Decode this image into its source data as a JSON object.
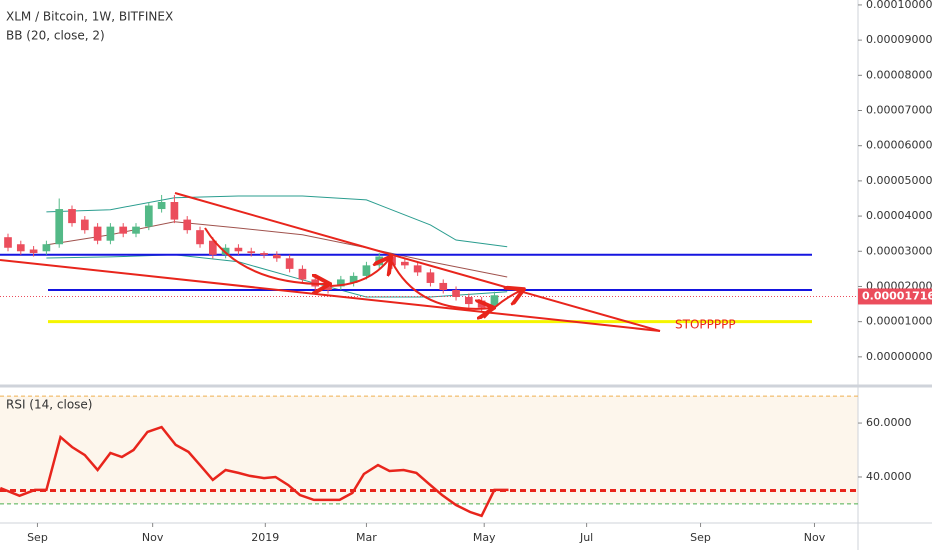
{
  "chart_data": [
    {
      "type": "candlestick",
      "title": "XLM / Bitcoin, 1W, BITFINEX",
      "subtitle": "BB (20, close, 2)",
      "x": [
        0,
        1,
        2,
        3,
        4,
        5,
        6,
        7,
        8,
        9,
        10,
        11,
        12,
        13,
        14,
        15,
        16,
        17,
        18,
        19,
        20,
        21,
        22,
        23,
        24,
        25,
        26,
        27,
        28,
        29,
        30,
        31,
        32,
        33,
        34,
        35,
        36,
        37,
        38
      ],
      "open": [
        3.4e-05,
        3.2e-05,
        3.05e-05,
        3e-05,
        3.2e-05,
        4.2e-05,
        3.9e-05,
        3.7e-05,
        3.3e-05,
        3.7e-05,
        3.5e-05,
        3.7e-05,
        4.2e-05,
        4.4e-05,
        3.9e-05,
        3.6e-05,
        3.3e-05,
        2.9e-05,
        3.1e-05,
        3e-05,
        2.95e-05,
        2.9e-05,
        2.8e-05,
        2.5e-05,
        2.2e-05,
        2e-05,
        2e-05,
        2.1e-05,
        2.3e-05,
        2.6e-05,
        2.85e-05,
        2.7e-05,
        2.6e-05,
        2.4e-05,
        2.1e-05,
        1.9e-05,
        1.7e-05,
        1.6e-05,
        1.45e-05
      ],
      "high": [
        3.5e-05,
        3.3e-05,
        3.15e-05,
        3.3e-05,
        4.5e-05,
        4.3e-05,
        4e-05,
        3.8e-05,
        3.8e-05,
        3.8e-05,
        3.8e-05,
        4.4e-05,
        4.6e-05,
        4.6e-05,
        4e-05,
        3.7e-05,
        3.4e-05,
        3.2e-05,
        3.2e-05,
        3.1e-05,
        3e-05,
        3e-05,
        2.9e-05,
        2.6e-05,
        2.3e-05,
        2.1e-05,
        2.3e-05,
        2.4e-05,
        2.7e-05,
        2.95e-05,
        2.9e-05,
        2.8e-05,
        2.7e-05,
        2.5e-05,
        2.2e-05,
        2e-05,
        1.8e-05,
        1.7e-05,
        1.85e-05
      ],
      "low": [
        3e-05,
        2.9e-05,
        2.85e-05,
        2.9e-05,
        3.1e-05,
        3.7e-05,
        3.5e-05,
        3.2e-05,
        3.2e-05,
        3.4e-05,
        3.4e-05,
        3.6e-05,
        4.1e-05,
        3.8e-05,
        3.5e-05,
        3.1e-05,
        2.8e-05,
        2.8e-05,
        2.9e-05,
        2.85e-05,
        2.8e-05,
        2.7e-05,
        2.4e-05,
        2.1e-05,
        1.9e-05,
        1.8e-05,
        1.9e-05,
        2e-05,
        2.2e-05,
        2.5e-05,
        2.5e-05,
        2.5e-05,
        2.3e-05,
        2e-05,
        1.8e-05,
        1.6e-05,
        1.4e-05,
        1.3e-05,
        1.35e-05
      ],
      "close": [
        3.1e-05,
        3e-05,
        2.95e-05,
        3.2e-05,
        4.2e-05,
        3.8e-05,
        3.6e-05,
        3.3e-05,
        3.7e-05,
        3.5e-05,
        3.7e-05,
        4.3e-05,
        4.4e-05,
        3.9e-05,
        3.6e-05,
        3.2e-05,
        2.9e-05,
        3.1e-05,
        3e-05,
        2.95e-05,
        2.9e-05,
        2.8e-05,
        2.5e-05,
        2.2e-05,
        2e-05,
        1.9e-05,
        2.2e-05,
        2.3e-05,
        2.6e-05,
        2.85e-05,
        2.6e-05,
        2.6e-05,
        2.4e-05,
        2.1e-05,
        1.9e-05,
        1.7e-05,
        1.5e-05,
        1.4e-05,
        1.75e-05
      ],
      "up_color": "#53b987",
      "down_color": "#eb4d5c",
      "overlays": [
        {
          "color": "#2a9d8f",
          "x": [
            3,
            8,
            13,
            18,
            23,
            28,
            33,
            35,
            39
          ],
          "values": [
            4.12e-05,
            4.18e-05,
            4.52e-05,
            4.57e-05,
            4.57e-05,
            4.46e-05,
            3.75e-05,
            3.32e-05,
            3.13e-05
          ]
        },
        {
          "color": "#a0524d",
          "x": [
            3,
            8,
            13,
            18,
            23,
            28,
            33,
            39
          ],
          "values": [
            3.18e-05,
            3.47e-05,
            3.84e-05,
            3.66e-05,
            3.47e-05,
            3.1e-05,
            2.7e-05,
            2.27e-05
          ]
        },
        {
          "color": "#2a9d8f",
          "x": [
            3,
            8,
            13,
            18,
            23,
            28,
            33,
            39
          ],
          "values": [
            2.81e-05,
            2.84e-05,
            2.9e-05,
            2.7e-05,
            2.19e-05,
            1.7e-05,
            1.7e-05,
            1.85e-05
          ]
        }
      ],
      "levels": [
        {
          "value": 2.9e-05,
          "color": "#1515e0"
        },
        {
          "value": 1.9e-05,
          "color": "#1515e0"
        },
        {
          "value": 1e-05,
          "color": "#f5f500"
        }
      ],
      "last_price": 1.716e-05,
      "annotation": "STOPPPPP",
      "xlim": [
        -0.625,
        66.4
      ],
      "ylim": [
        -8e-06,
        0.0001014
      ],
      "yticks": [
        {
          "value": 0,
          "label": "0.00000000"
        },
        {
          "value": 1e-05,
          "label": "0.00001000"
        },
        {
          "value": 2e-05,
          "label": "0.00002000"
        },
        {
          "value": 3e-05,
          "label": "0.00003000"
        },
        {
          "value": 4e-05,
          "label": "0.00004000"
        },
        {
          "value": 5e-05,
          "label": "0.00005000"
        },
        {
          "value": 6e-05,
          "label": "0.00006000"
        },
        {
          "value": 7e-05,
          "label": "0.00007000"
        },
        {
          "value": 8e-05,
          "label": "0.00008000"
        },
        {
          "value": 9e-05,
          "label": "0.00009000"
        },
        {
          "value": 0.0001,
          "label": "0.00010000"
        }
      ],
      "xticks": [
        {
          "value": 2.3,
          "label": "Sep"
        },
        {
          "value": 11.3,
          "label": "Nov"
        },
        {
          "value": 20.1,
          "label": "2019"
        },
        {
          "value": 28,
          "label": "Mar"
        },
        {
          "value": 37.2,
          "label": "May"
        },
        {
          "value": 45.2,
          "label": "Jul"
        },
        {
          "value": 54.1,
          "label": "Sep"
        },
        {
          "value": 63,
          "label": "Nov"
        }
      ]
    },
    {
      "type": "line",
      "title": "RSI (14, close)",
      "x": [
        -0.6,
        0.9,
        2.1,
        3,
        4.1,
        5,
        6,
        7,
        8,
        8.9,
        9.8,
        10.9,
        12,
        13.1,
        14.1,
        15,
        16,
        17,
        18,
        18.9,
        20,
        20.9,
        21.9,
        22.8,
        23.9,
        24.8,
        25.9,
        26.9,
        27.8,
        28.9,
        29.8,
        30.9,
        31.9,
        32.8,
        33.9,
        35,
        36.1,
        37,
        38,
        39.1
      ],
      "values": [
        35.9,
        33.0,
        35.2,
        35.2,
        54.8,
        51.1,
        48.1,
        42.6,
        48.9,
        47.4,
        50.0,
        56.7,
        58.5,
        51.9,
        49.3,
        44.4,
        38.9,
        42.6,
        41.5,
        40.4,
        39.6,
        40.0,
        37.0,
        33.3,
        31.5,
        31.5,
        31.5,
        34.1,
        41.1,
        44.4,
        42.2,
        42.6,
        41.5,
        37.8,
        33.3,
        29.6,
        27.0,
        25.6,
        35.2,
        35.2
      ],
      "color": "#e8251c",
      "levels": [
        {
          "value": 70,
          "color": "#f0b050"
        },
        {
          "value": 35,
          "color": "#e8251c"
        },
        {
          "value": 30,
          "color": "#4caf50"
        }
      ],
      "ylim": [
        23.3,
        73.0
      ],
      "yticks": [
        {
          "value": 40,
          "label": "40.0000"
        },
        {
          "value": 60,
          "label": "60.0000"
        }
      ]
    }
  ]
}
